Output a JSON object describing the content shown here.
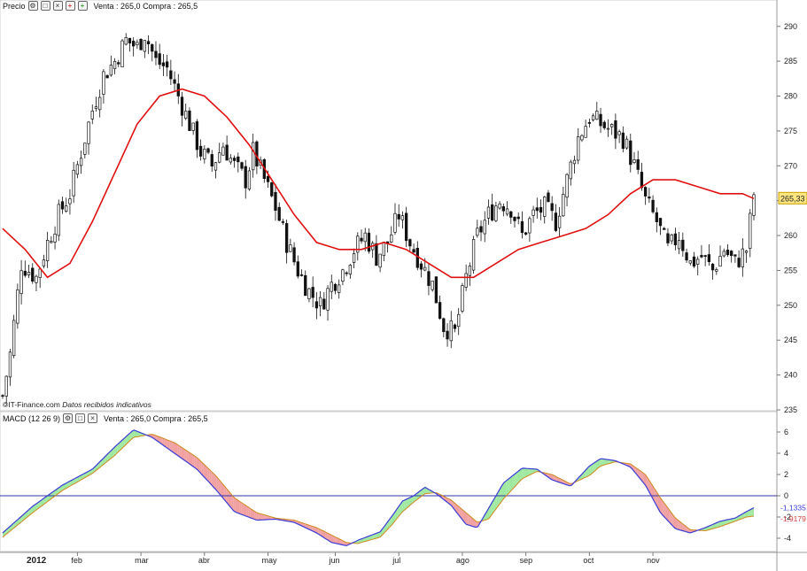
{
  "price_panel": {
    "label": "Precio",
    "quote": "Venta : 265,0 Compra : 265,5",
    "credit_source": "©IT-Finance.com",
    "credit_note": "Datos recibidos indicativos",
    "last_value_tag": "265,33",
    "tool_icons": [
      "wrench-icon",
      "window-icon",
      "close-icon",
      "zoom-in-icon",
      "zoom-out-icon"
    ]
  },
  "macd_panel": {
    "label": "MACD (12 26 9)",
    "quote": "Venta : 265,0 Compra : 265,5",
    "value_tag_macd": "-1,1335",
    "value_tag_signal": "-1,9179"
  },
  "x_axis": {
    "year_label": "2012",
    "months": [
      "feb",
      "mar",
      "abr",
      "may",
      "jun",
      "jul",
      "ago",
      "sep",
      "oct",
      "nov"
    ]
  },
  "colors": {
    "moving_average": "#e01010",
    "zero_line": "#3333aa",
    "macd_line": "#3b3bd6",
    "signal_line": "#d08a20",
    "hist_up": "#9fe89f",
    "hist_down": "#f0a0a0",
    "last_tag_bg": "#ffe680"
  },
  "chart_data": [
    {
      "type": "candlestick",
      "title": "",
      "ylim": [
        235,
        292
      ],
      "yticks": [
        235,
        240,
        245,
        250,
        255,
        260,
        265,
        270,
        275,
        280,
        285,
        290
      ],
      "x_ticks": [
        "2012",
        "feb",
        "mar",
        "abr",
        "may",
        "jun",
        "jul",
        "ago",
        "sep",
        "oct",
        "nov"
      ],
      "close_path": [
        [
          0,
          237
        ],
        [
          2,
          243
        ],
        [
          5,
          256
        ],
        [
          9,
          254
        ],
        [
          12,
          259
        ],
        [
          15,
          263
        ],
        [
          18,
          266
        ],
        [
          21,
          272
        ],
        [
          24,
          278
        ],
        [
          27,
          283
        ],
        [
          30,
          285
        ],
        [
          33,
          288
        ],
        [
          36,
          287
        ],
        [
          38,
          289
        ],
        [
          41,
          285
        ],
        [
          44,
          284
        ],
        [
          47,
          280
        ],
        [
          50,
          276
        ],
        [
          53,
          272
        ],
        [
          56,
          270
        ],
        [
          59,
          273
        ],
        [
          62,
          270
        ],
        [
          65,
          268
        ],
        [
          67,
          272
        ],
        [
          70,
          268
        ],
        [
          73,
          264
        ],
        [
          76,
          259
        ],
        [
          79,
          255
        ],
        [
          82,
          252
        ],
        [
          85,
          250
        ],
        [
          88,
          253
        ],
        [
          91,
          255
        ],
        [
          94,
          258
        ],
        [
          97,
          260
        ],
        [
          100,
          257
        ],
        [
          103,
          259
        ],
        [
          106,
          263
        ],
        [
          109,
          259
        ],
        [
          112,
          256
        ],
        [
          115,
          253
        ],
        [
          118,
          247
        ],
        [
          121,
          246
        ],
        [
          124,
          254
        ],
        [
          127,
          260
        ],
        [
          130,
          263
        ],
        [
          133,
          265
        ],
        [
          136,
          264
        ],
        [
          139,
          260
        ],
        [
          142,
          263
        ],
        [
          145,
          264
        ],
        [
          148,
          262
        ],
        [
          151,
          268
        ],
        [
          154,
          274
        ],
        [
          157,
          277
        ],
        [
          160,
          276
        ],
        [
          163,
          275
        ],
        [
          166,
          274
        ],
        [
          169,
          270
        ],
        [
          172,
          265
        ],
        [
          175,
          262
        ],
        [
          178,
          258
        ],
        [
          181,
          260
        ],
        [
          184,
          256
        ],
        [
          187,
          257
        ],
        [
          190,
          255
        ],
        [
          193,
          258
        ],
        [
          196,
          256
        ],
        [
          199,
          258
        ],
        [
          201,
          266
        ]
      ],
      "moving_average": {
        "name": "",
        "points": [
          [
            0,
            261
          ],
          [
            6,
            258
          ],
          [
            12,
            254
          ],
          [
            18,
            256
          ],
          [
            24,
            262
          ],
          [
            30,
            269
          ],
          [
            36,
            276
          ],
          [
            42,
            280
          ],
          [
            48,
            281
          ],
          [
            54,
            280
          ],
          [
            60,
            277
          ],
          [
            66,
            273
          ],
          [
            72,
            268
          ],
          [
            78,
            263
          ],
          [
            84,
            259
          ],
          [
            90,
            258
          ],
          [
            96,
            258
          ],
          [
            102,
            259
          ],
          [
            108,
            258
          ],
          [
            114,
            256
          ],
          [
            120,
            254
          ],
          [
            126,
            254
          ],
          [
            132,
            256
          ],
          [
            138,
            258
          ],
          [
            144,
            259
          ],
          [
            150,
            260
          ],
          [
            156,
            261
          ],
          [
            162,
            263
          ],
          [
            168,
            266
          ],
          [
            174,
            268
          ],
          [
            180,
            268
          ],
          [
            186,
            267
          ],
          [
            192,
            266
          ],
          [
            198,
            266
          ],
          [
            201,
            265.3
          ]
        ]
      }
    },
    {
      "type": "line",
      "title": "",
      "ylim": [
        -5,
        7
      ],
      "yticks": [
        -4,
        -2,
        0,
        2,
        4,
        6
      ],
      "series": [
        {
          "name": "",
          "points": [
            [
              0,
              -3.5
            ],
            [
              8,
              -1
            ],
            [
              16,
              1
            ],
            [
              24,
              2.5
            ],
            [
              30,
              4.6
            ],
            [
              35,
              6.2
            ],
            [
              40,
              5.5
            ],
            [
              46,
              4
            ],
            [
              52,
              2.5
            ],
            [
              57,
              0.6
            ],
            [
              62,
              -1.5
            ],
            [
              68,
              -2.3
            ],
            [
              73,
              -2.2
            ],
            [
              78,
              -2.5
            ],
            [
              84,
              -3.5
            ],
            [
              88,
              -4.4
            ],
            [
              92,
              -4.7
            ],
            [
              95,
              -4.2
            ],
            [
              101,
              -3.4
            ],
            [
              104,
              -2
            ],
            [
              107,
              -0.5
            ],
            [
              110,
              0
            ],
            [
              113,
              0.8
            ],
            [
              116,
              0.2
            ],
            [
              120,
              -0.9
            ],
            [
              124,
              -2.7
            ],
            [
              127,
              -3
            ],
            [
              130,
              -1.2
            ],
            [
              134,
              1.2
            ],
            [
              139,
              2.6
            ],
            [
              143,
              2.5
            ],
            [
              147,
              1.5
            ],
            [
              152,
              0.9
            ],
            [
              157,
              2.8
            ],
            [
              160,
              3.5
            ],
            [
              164,
              3.3
            ],
            [
              168,
              2.7
            ],
            [
              172,
              1
            ],
            [
              176,
              -1.6
            ],
            [
              180,
              -3.1
            ],
            [
              184,
              -3.5
            ],
            [
              188,
              -3
            ],
            [
              192,
              -2.4
            ],
            [
              196,
              -2.1
            ],
            [
              199,
              -1.5
            ],
            [
              201,
              -1.13
            ]
          ]
        },
        {
          "name": "",
          "points": [
            [
              0,
              -3.9
            ],
            [
              8,
              -1.6
            ],
            [
              16,
              0.5
            ],
            [
              24,
              2.1
            ],
            [
              30,
              3.8
            ],
            [
              35,
              5.5
            ],
            [
              40,
              5.8
            ],
            [
              46,
              5
            ],
            [
              52,
              3.6
            ],
            [
              57,
              1.9
            ],
            [
              62,
              -0.2
            ],
            [
              68,
              -1.6
            ],
            [
              73,
              -2.1
            ],
            [
              78,
              -2.3
            ],
            [
              84,
              -3
            ],
            [
              88,
              -3.7
            ],
            [
              92,
              -4.4
            ],
            [
              95,
              -4.5
            ],
            [
              101,
              -3.9
            ],
            [
              104,
              -2.8
            ],
            [
              107,
              -1.5
            ],
            [
              110,
              -0.6
            ],
            [
              113,
              0.2
            ],
            [
              116,
              0.3
            ],
            [
              120,
              -0.4
            ],
            [
              124,
              -1.6
            ],
            [
              127,
              -2.5
            ],
            [
              130,
              -2.2
            ],
            [
              134,
              -0.3
            ],
            [
              139,
              1.6
            ],
            [
              143,
              2.3
            ],
            [
              147,
              2
            ],
            [
              152,
              1.1
            ],
            [
              157,
              1.9
            ],
            [
              160,
              2.8
            ],
            [
              164,
              3.2
            ],
            [
              168,
              3
            ],
            [
              172,
              2
            ],
            [
              176,
              -0.2
            ],
            [
              180,
              -2.1
            ],
            [
              184,
              -3.2
            ],
            [
              188,
              -3.3
            ],
            [
              192,
              -2.9
            ],
            [
              196,
              -2.4
            ],
            [
              199,
              -2
            ],
            [
              201,
              -1.92
            ]
          ]
        }
      ]
    }
  ]
}
